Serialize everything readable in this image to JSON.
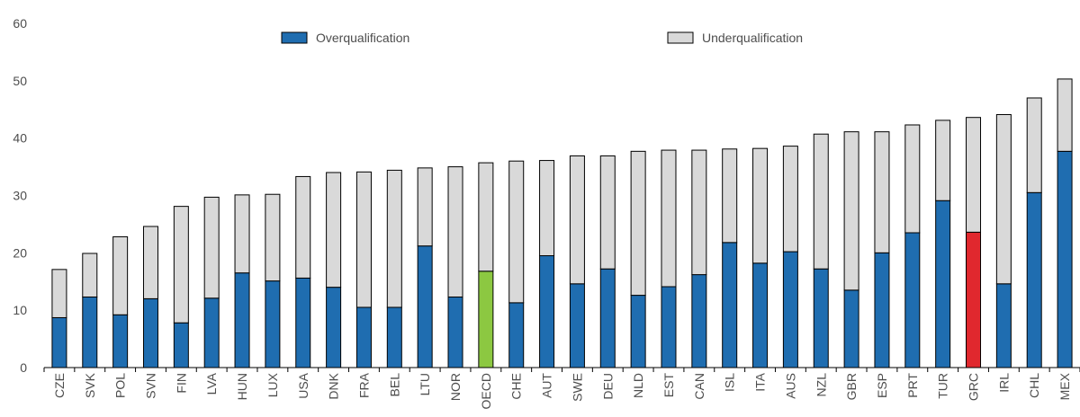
{
  "chart_data": {
    "type": "stacked_bar",
    "categories": [
      "CZE",
      "SVK",
      "POL",
      "SVN",
      "FIN",
      "LVA",
      "HUN",
      "LUX",
      "USA",
      "DNK",
      "FRA",
      "BEL",
      "LTU",
      "NOR",
      "OECD",
      "CHE",
      "AUT",
      "SWE",
      "DEU",
      "NLD",
      "EST",
      "CAN",
      "ISL",
      "ITA",
      "AUS",
      "NZL",
      "GBR",
      "ESP",
      "PRT",
      "TUR",
      "GRC",
      "IRL",
      "CHL",
      "MEX"
    ],
    "series": [
      {
        "name": "Overqualification",
        "color": "#1f6db0",
        "colors": [
          "#1f6db0",
          "#1f6db0",
          "#1f6db0",
          "#1f6db0",
          "#1f6db0",
          "#1f6db0",
          "#1f6db0",
          "#1f6db0",
          "#1f6db0",
          "#1f6db0",
          "#1f6db0",
          "#1f6db0",
          "#1f6db0",
          "#1f6db0",
          "#8cc841",
          "#1f6db0",
          "#1f6db0",
          "#1f6db0",
          "#1f6db0",
          "#1f6db0",
          "#1f6db0",
          "#1f6db0",
          "#1f6db0",
          "#1f6db0",
          "#1f6db0",
          "#1f6db0",
          "#1f6db0",
          "#1f6db0",
          "#1f6db0",
          "#1f6db0",
          "#e0282e",
          "#1f6db0",
          "#1f6db0",
          "#1f6db0"
        ],
        "values": [
          8.7,
          12.3,
          9.2,
          12.0,
          7.8,
          12.1,
          16.5,
          15.1,
          15.6,
          14.0,
          10.5,
          10.5,
          21.2,
          12.3,
          16.8,
          11.3,
          19.5,
          14.6,
          17.2,
          12.6,
          14.1,
          16.2,
          21.8,
          18.2,
          20.2,
          17.2,
          13.5,
          20.0,
          23.5,
          29.1,
          23.6,
          14.6,
          30.5,
          37.7
        ]
      },
      {
        "name": "Underqualification",
        "color": "#d9d9d9",
        "values": [
          8.4,
          7.6,
          13.6,
          12.6,
          20.3,
          17.6,
          13.6,
          15.1,
          17.7,
          20.0,
          23.6,
          23.9,
          13.6,
          22.7,
          18.9,
          24.7,
          16.6,
          22.3,
          19.7,
          25.1,
          23.8,
          21.7,
          16.3,
          20.0,
          18.4,
          23.5,
          27.6,
          21.1,
          18.8,
          14.0,
          20.0,
          29.5,
          16.5,
          12.6
        ]
      }
    ],
    "ylim": [
      0,
      60
    ],
    "yticks": [
      0,
      10,
      20,
      30,
      40,
      50,
      60
    ],
    "grid": false,
    "legend": "top"
  }
}
